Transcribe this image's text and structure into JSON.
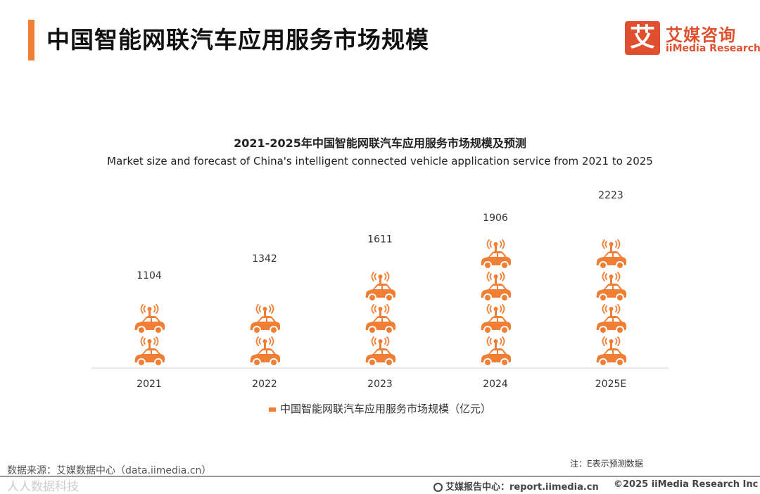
{
  "header": {
    "title": "中国智能网联汽车应用服务市场规模",
    "logo_mark": "艾",
    "logo_cn": "艾媒咨询",
    "logo_en": "iiMedia Research"
  },
  "chart_data": {
    "type": "bar",
    "title": "2021-2025年中国智能网联汽车应用服务市场规模及预测",
    "subtitle": "Market size and forecast of China's intelligent connected vehicle application service from 2021 to 2025",
    "categories": [
      "2021",
      "2022",
      "2023",
      "2024",
      "2025E"
    ],
    "values": [
      1104,
      1342,
      1611,
      1906,
      2223
    ],
    "series": [
      {
        "name": "中国智能网联汽车应用服务市场规模（亿元）",
        "values": [
          1104,
          1342,
          1611,
          1906,
          2223
        ]
      }
    ],
    "units_per_icon": 450,
    "xlabel": "",
    "ylabel": "",
    "ylim": [
      0,
      2250
    ],
    "grid": false,
    "legend_position": "bottom",
    "color": "#f07f35"
  },
  "legend": {
    "label": "中国智能网联汽车应用服务市场规模（亿元）"
  },
  "source": "数据来源：艾媒数据中心（data.iimedia.cn）",
  "note": "注：E表示预测数据",
  "footer": {
    "watermark": "人人数据科技",
    "report": "艾媒报告中心：report.iimedia.cn",
    "copyright": "©2025  iiMedia Research  Inc"
  }
}
